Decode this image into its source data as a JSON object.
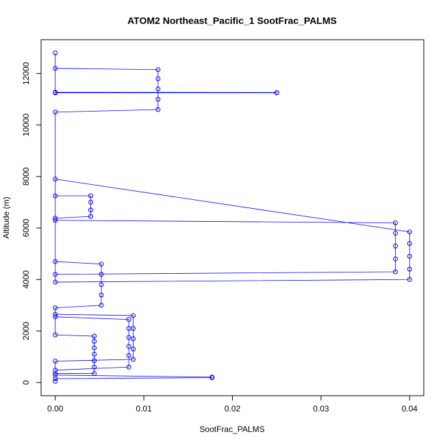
{
  "chart_data": {
    "type": "line",
    "title": "ATOM2 Northeast_Pacific_1 SootFrac_PALMS",
    "xlabel": "SootFrac_PALMS",
    "ylabel": "Altitude (m)",
    "color": "#0000ff",
    "markers": true,
    "x": [
      0,
      0,
      0.0177,
      0.0177,
      0.0177,
      0,
      0,
      0.0044,
      0.0044,
      0.0044,
      0.0044,
      0.0044,
      0.0044,
      0.0044,
      0,
      0,
      0.0083,
      0.0083,
      0.0083,
      0.0083,
      0.0083,
      0.0083,
      0,
      0,
      0.0088,
      0.0088,
      0.0088,
      0.0088,
      0.0088,
      0,
      0,
      0.0052,
      0.0052,
      0.0052,
      0.0052,
      0.0052,
      0,
      0,
      0.0384,
      0.0384,
      0.0384,
      0.0384,
      0.0384,
      0,
      0,
      0.004,
      0.004,
      0.004,
      0.004,
      0,
      0,
      0.04,
      0.04,
      0.04,
      0.04,
      0.04,
      0,
      0,
      0.0116,
      0.0116,
      0.0116,
      0.0116,
      0.0116,
      0,
      0,
      0.025,
      0.025,
      0,
      0
    ],
    "values": [
      50,
      150,
      190,
      200,
      210,
      290,
      350,
      350,
      600,
      850,
      1100,
      1350,
      1600,
      1800,
      1850,
      2550,
      2450,
      2100,
      1750,
      1400,
      1050,
      600,
      480,
      830,
      900,
      1300,
      1700,
      2100,
      2600,
      2650,
      2900,
      3000,
      3400,
      3800,
      4200,
      4600,
      4700,
      4200,
      4300,
      4800,
      5300,
      5800,
      6200,
      6300,
      6380,
      6450,
      6700,
      7000,
      7250,
      7250,
      7900,
      5850,
      5400,
      4900,
      4400,
      4000,
      3900,
      10500,
      10600,
      11000,
      11400,
      11800,
      12150,
      12200,
      11250,
      11250,
      11260,
      11270,
      12800
    ],
    "xlim": [
      -0.0016,
      0.0416
    ],
    "ylim": [
      -512,
      13312
    ],
    "xticks": [
      {
        "value": 0,
        "label": "0.00"
      },
      {
        "value": 0.01,
        "label": "0.01"
      },
      {
        "value": 0.02,
        "label": "0.02"
      },
      {
        "value": 0.03,
        "label": "0.03"
      },
      {
        "value": 0.04,
        "label": "0.04"
      }
    ],
    "yticks": [
      0,
      2000,
      4000,
      6000,
      8000,
      10000,
      12000
    ]
  }
}
